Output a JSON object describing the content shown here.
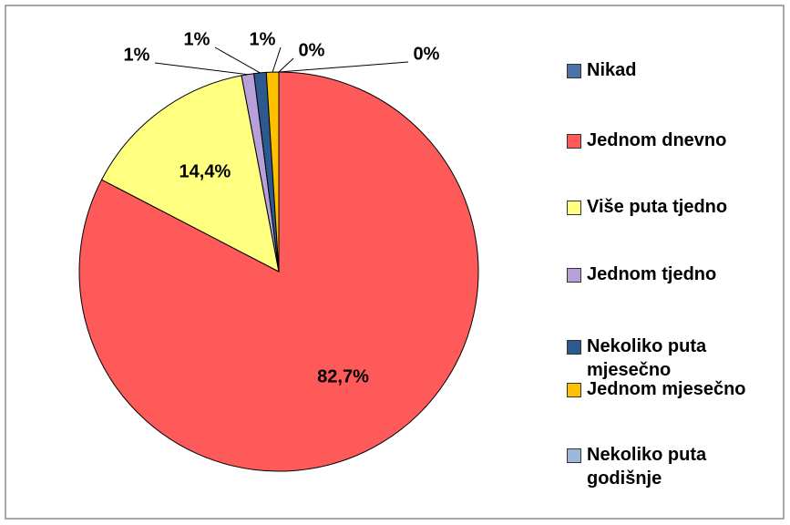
{
  "chart_data": {
    "type": "pie",
    "categories": [
      "Nikad",
      "Jednom dnevno",
      "Više puta tjedno",
      "Jednom tjedno",
      "Nekoliko puta mjesečno",
      "Jednom mjesečno",
      "Nekoliko puta godišnje"
    ],
    "values": [
      0,
      82.7,
      14.4,
      1,
      1,
      1,
      0
    ],
    "value_labels": [
      "0%",
      "82,7%",
      "14,4%",
      "1%",
      "1%",
      "1%",
      "0%"
    ],
    "colors": [
      "#4a71a8",
      "#ff5a5a",
      "#ffff80",
      "#b79fd9",
      "#2c5a8e",
      "#ffc000",
      "#9bb8dc"
    ],
    "legend": "right"
  }
}
